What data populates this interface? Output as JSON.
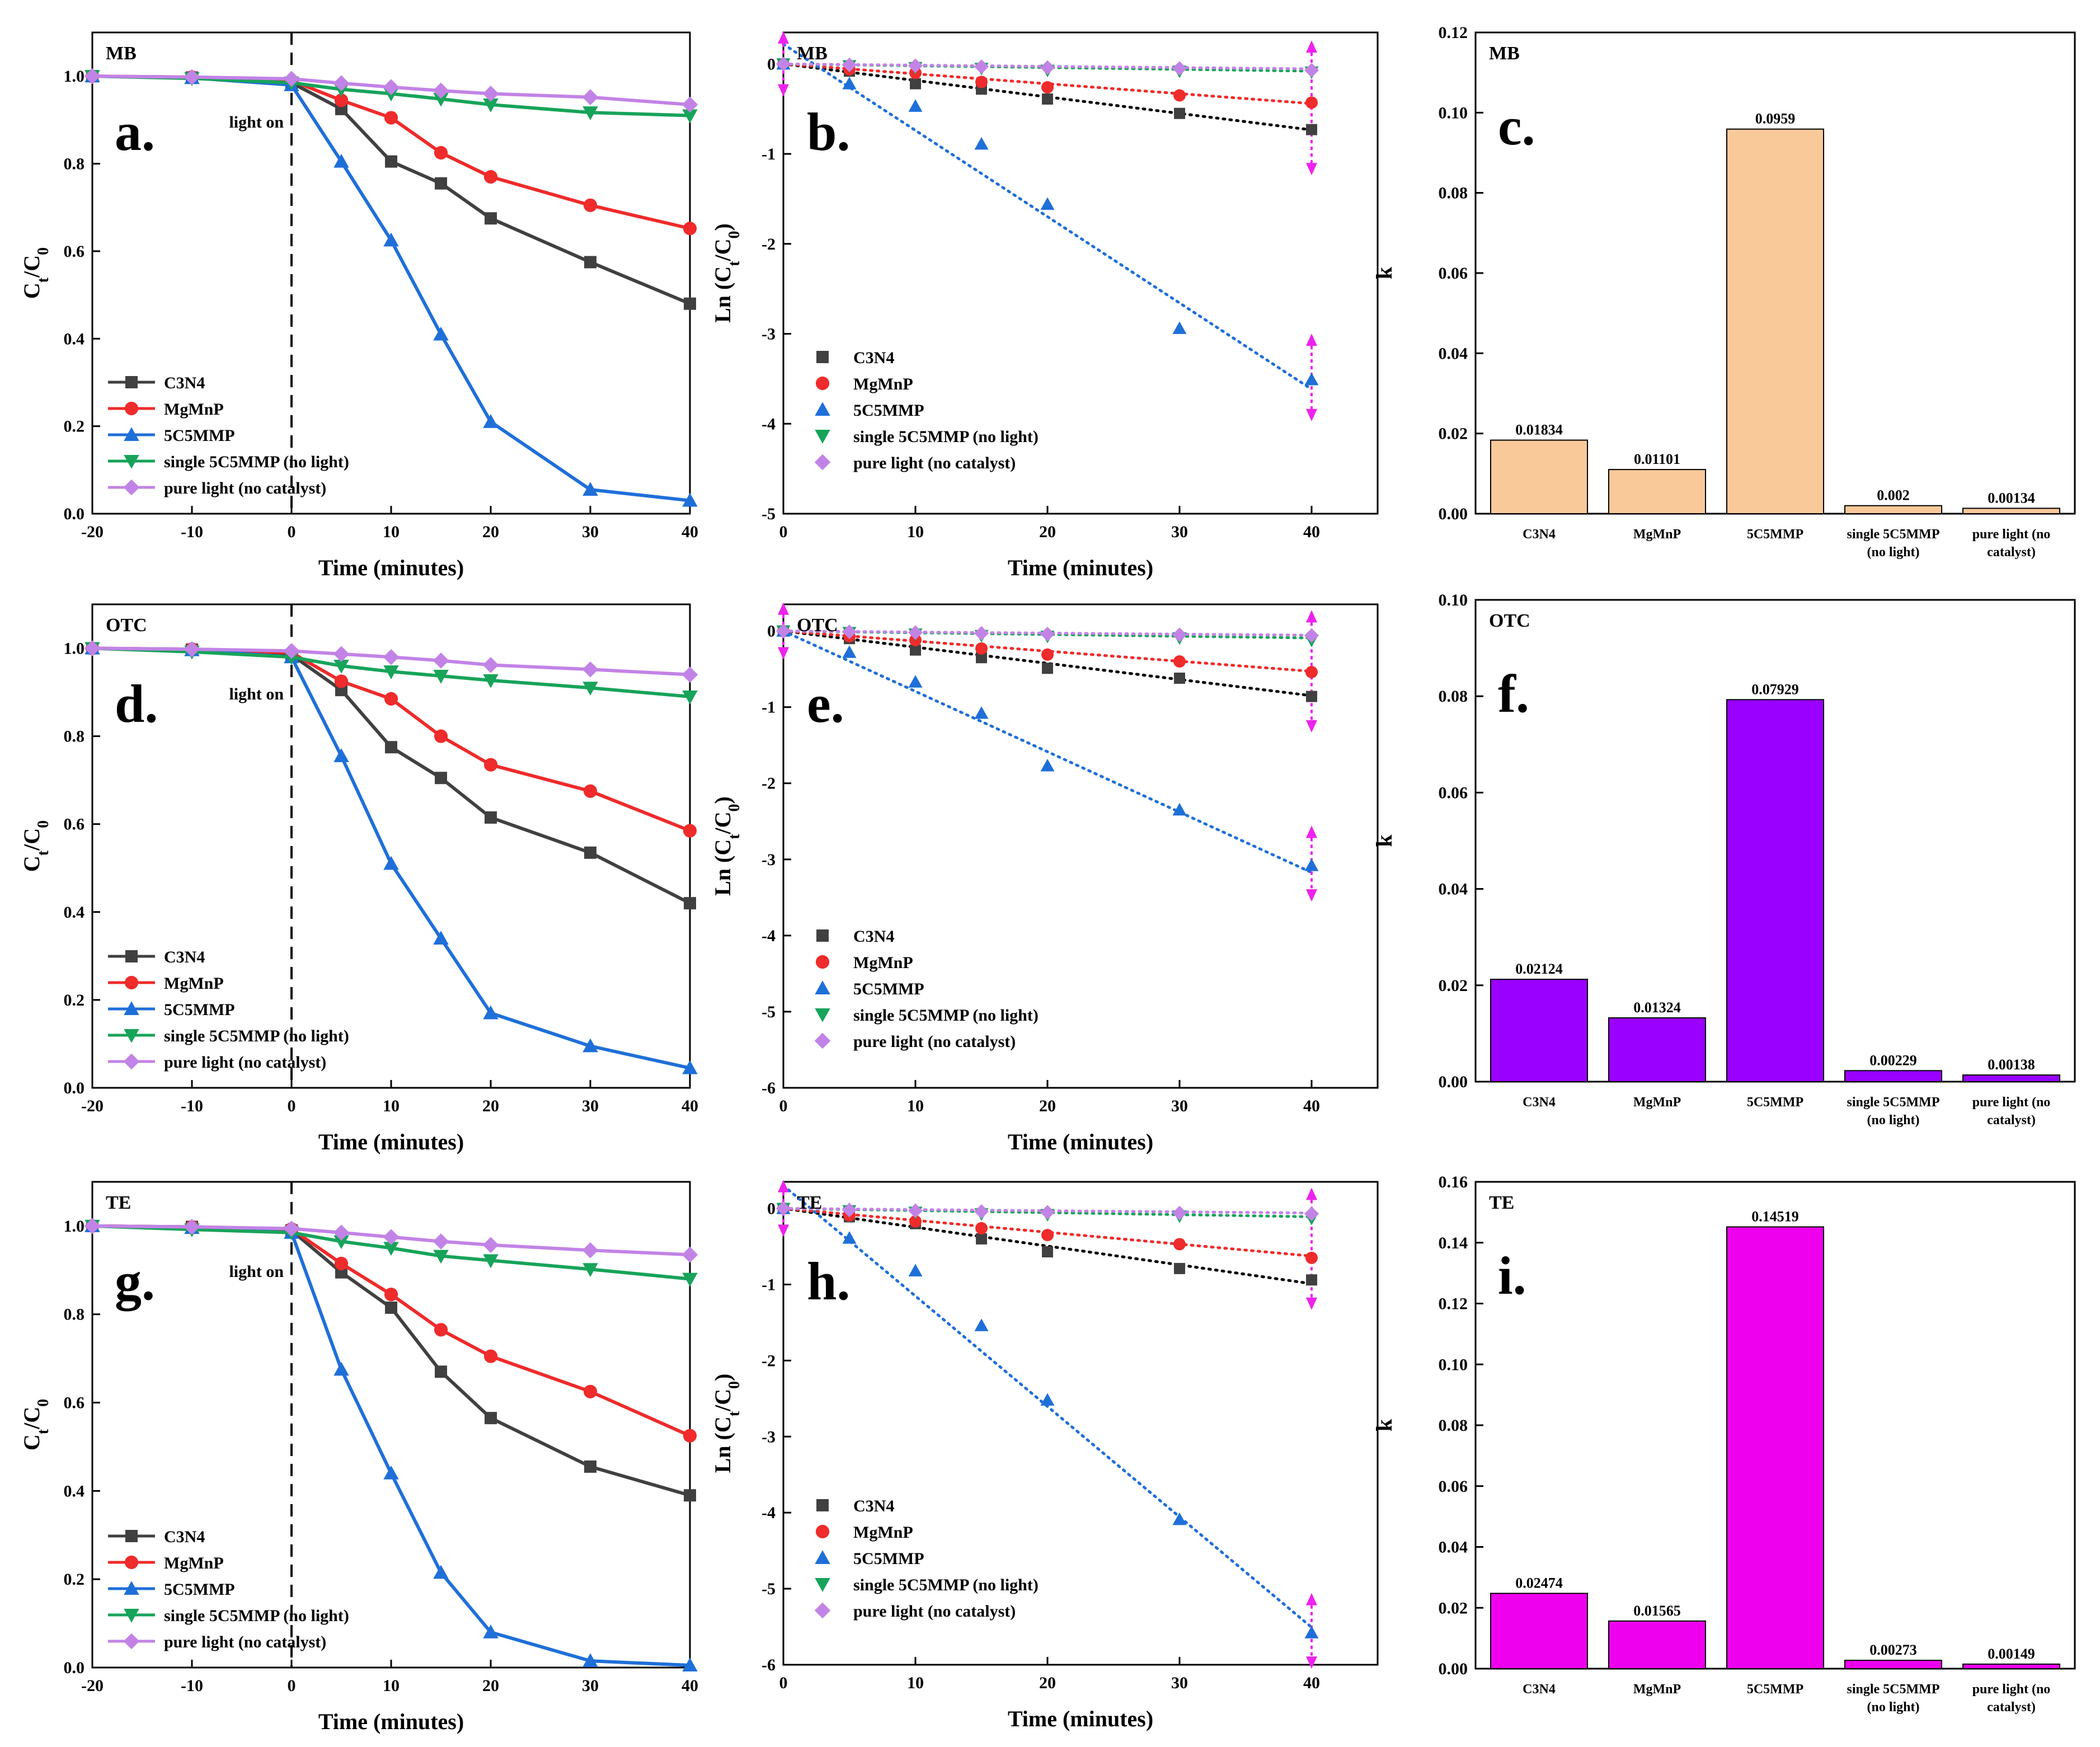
{
  "figure": {
    "series_names": [
      "C3N4",
      "MgMnP",
      "5C5MMP",
      "single 5C5MMP (no light)",
      "pure light (no catalyst)"
    ],
    "series_colors": [
      "#404040",
      "#ef2b2b",
      "#1f6fd9",
      "#17a35a",
      "#c283e6"
    ],
    "scatter_colors": [
      "#404040",
      "#ef2b2b",
      "#1f6fd9",
      "#17a35a",
      "#c283e6"
    ],
    "fit_colors": [
      "#000000",
      "#ef2b2b",
      "#1f6fd9",
      "#17a35a",
      "#c283e6"
    ],
    "magenta": "#ee22ee",
    "markers": [
      "square",
      "circle",
      "triangle-up",
      "triangle-down",
      "diamond"
    ],
    "light_on_label": "light on",
    "bar_categories": [
      "C3N4",
      "MgMnP",
      "5C5MMP",
      "single 5C5MMP|(no light)",
      "pure light (no|catalyst)"
    ]
  },
  "chart_data": [
    {
      "id": "a",
      "type": "line",
      "panel_letter": "a.",
      "dataset": "MB",
      "xlabel": "Time (minutes)",
      "ylabel": "Ct/C0",
      "xlim": [
        -20,
        40
      ],
      "ylim": [
        0,
        1.1
      ],
      "xticks": [
        -20,
        -10,
        0,
        10,
        20,
        30,
        40
      ],
      "yticks": [
        "0.0",
        "0.2",
        "0.4",
        "0.6",
        "0.8",
        "1.0"
      ],
      "legend_position": "bottom-left",
      "x": [
        -20,
        -10,
        0,
        5,
        10,
        15,
        20,
        30,
        40
      ],
      "series": [
        {
          "name": "C3N4",
          "values": [
            1.0,
            0.997,
            0.985,
            0.925,
            0.805,
            0.755,
            0.675,
            0.575,
            0.48
          ]
        },
        {
          "name": "MgMnP",
          "values": [
            1.0,
            0.998,
            0.99,
            0.945,
            0.905,
            0.825,
            0.77,
            0.705,
            0.652
          ]
        },
        {
          "name": "5C5MMP",
          "values": [
            1.0,
            0.996,
            0.98,
            0.805,
            0.625,
            0.41,
            0.21,
            0.055,
            0.03
          ]
        },
        {
          "name": "single 5C5MMP (no light)",
          "values": [
            1.0,
            0.995,
            0.985,
            0.97,
            0.96,
            0.948,
            0.935,
            0.917,
            0.91
          ]
        },
        {
          "name": "pure light (no catalyst)",
          "values": [
            1.0,
            0.998,
            0.994,
            0.984,
            0.975,
            0.967,
            0.96,
            0.952,
            0.935
          ]
        }
      ]
    },
    {
      "id": "b",
      "type": "scatter",
      "panel_letter": "b.",
      "dataset": "MB",
      "xlabel": "Time (minutes)",
      "ylabel": "Ln (Ct/C0)",
      "xlim": [
        0,
        45
      ],
      "ylim": [
        -5,
        0.35
      ],
      "xticks": [
        0,
        10,
        20,
        30,
        40
      ],
      "yticks": [
        "0",
        "-1",
        "-2",
        "-3",
        "-4",
        "-5"
      ],
      "legend_position": "bottom-left",
      "x": [
        0,
        5,
        10,
        15,
        20,
        30,
        40
      ],
      "series": [
        {
          "name": "C3N4",
          "values": [
            0,
            -0.08,
            -0.22,
            -0.28,
            -0.39,
            -0.55,
            -0.73
          ]
        },
        {
          "name": "MgMnP",
          "values": [
            0,
            -0.06,
            -0.1,
            -0.2,
            -0.26,
            -0.35,
            -0.43
          ]
        },
        {
          "name": "5C5MMP",
          "values": [
            0,
            -0.22,
            -0.47,
            -0.89,
            -1.56,
            -2.94,
            -3.51
          ]
        },
        {
          "name": "single 5C5MMP (no light)",
          "values": [
            0,
            -0.02,
            -0.04,
            -0.05,
            -0.07,
            -0.08,
            -0.09
          ]
        },
        {
          "name": "pure light (no catalyst)",
          "values": [
            0,
            -0.01,
            -0.02,
            -0.03,
            -0.04,
            -0.05,
            -0.07
          ]
        }
      ],
      "fit_slopes": [
        -0.01834,
        -0.01101,
        -0.0959,
        -0.002,
        -0.00134
      ],
      "fit_intercepts": [
        0,
        0,
        0.22,
        0,
        0
      ]
    },
    {
      "id": "c",
      "type": "bar",
      "panel_letter": "c.",
      "dataset": "MB",
      "xlabel": "",
      "ylabel": "k",
      "ylim": [
        0,
        0.12
      ],
      "yticks": [
        "0.00",
        "0.02",
        "0.04",
        "0.06",
        "0.08",
        "0.10",
        "0.12"
      ],
      "values": [
        0.01834,
        0.01101,
        0.0959,
        0.002,
        0.00134
      ],
      "value_labels": [
        "0.01834",
        "0.01101",
        "0.0959",
        "0.002",
        "0.00134"
      ],
      "bar_color": "#f9c99a"
    },
    {
      "id": "d",
      "type": "line",
      "panel_letter": "d.",
      "dataset": "OTC",
      "xlabel": "Time (minutes)",
      "ylabel": "Ct/C0",
      "xlim": [
        -20,
        40
      ],
      "ylim": [
        0,
        1.1
      ],
      "xticks": [
        -20,
        -10,
        0,
        10,
        20,
        30,
        40
      ],
      "yticks": [
        "0.0",
        "0.2",
        "0.4",
        "0.6",
        "0.8",
        "1.0"
      ],
      "legend_position": "bottom-left",
      "x": [
        -20,
        -10,
        0,
        5,
        10,
        15,
        20,
        30,
        40
      ],
      "series": [
        {
          "name": "C3N4",
          "values": [
            1.0,
            0.997,
            0.985,
            0.905,
            0.775,
            0.705,
            0.615,
            0.535,
            0.42
          ]
        },
        {
          "name": "MgMnP",
          "values": [
            1.0,
            0.998,
            0.99,
            0.925,
            0.885,
            0.8,
            0.735,
            0.675,
            0.585
          ]
        },
        {
          "name": "5C5MMP",
          "values": [
            1.0,
            0.996,
            0.98,
            0.755,
            0.51,
            0.34,
            0.17,
            0.095,
            0.045
          ]
        },
        {
          "name": "single 5C5MMP (no light)",
          "values": [
            1.0,
            0.992,
            0.98,
            0.96,
            0.947,
            0.937,
            0.927,
            0.91,
            0.89
          ]
        },
        {
          "name": "pure light (no catalyst)",
          "values": [
            1.0,
            0.998,
            0.994,
            0.987,
            0.98,
            0.972,
            0.962,
            0.952,
            0.94
          ]
        }
      ]
    },
    {
      "id": "e",
      "type": "scatter",
      "panel_letter": "e.",
      "dataset": "OTC",
      "xlabel": "Time (minutes)",
      "ylabel": "Ln (Ct/C0)",
      "xlim": [
        0,
        45
      ],
      "ylim": [
        -6,
        0.35
      ],
      "xticks": [
        0,
        10,
        20,
        30,
        40
      ],
      "yticks": [
        "0",
        "-1",
        "-2",
        "-3",
        "-4",
        "-5",
        "-6"
      ],
      "legend_position": "bottom-left",
      "x": [
        0,
        5,
        10,
        15,
        20,
        30,
        40
      ],
      "series": [
        {
          "name": "C3N4",
          "values": [
            0,
            -0.1,
            -0.25,
            -0.35,
            -0.49,
            -0.62,
            -0.86
          ]
        },
        {
          "name": "MgMnP",
          "values": [
            0,
            -0.07,
            -0.12,
            -0.23,
            -0.31,
            -0.4,
            -0.54
          ]
        },
        {
          "name": "5C5MMP",
          "values": [
            0,
            -0.28,
            -0.67,
            -1.08,
            -1.77,
            -2.35,
            -3.08
          ]
        },
        {
          "name": "single 5C5MMP (no light)",
          "values": [
            0,
            -0.02,
            -0.04,
            -0.06,
            -0.07,
            -0.09,
            -0.12
          ]
        },
        {
          "name": "pure light (no catalyst)",
          "values": [
            0,
            -0.01,
            -0.02,
            -0.03,
            -0.04,
            -0.05,
            -0.06
          ]
        }
      ],
      "fit_slopes": [
        -0.02124,
        -0.01324,
        -0.07929,
        -0.00229,
        -0.00138
      ],
      "fit_intercepts": [
        0,
        0,
        0,
        0,
        0
      ]
    },
    {
      "id": "f",
      "type": "bar",
      "panel_letter": "f.",
      "dataset": "OTC",
      "xlabel": "",
      "ylabel": "k",
      "ylim": [
        0,
        0.1
      ],
      "yticks": [
        "0.00",
        "0.02",
        "0.04",
        "0.06",
        "0.08",
        "0.10"
      ],
      "values": [
        0.02124,
        0.01324,
        0.07929,
        0.00229,
        0.00138
      ],
      "value_labels": [
        "0.02124",
        "0.01324",
        "0.07929",
        "0.00229",
        "0.00138"
      ],
      "bar_color": "#9900ff"
    },
    {
      "id": "g",
      "type": "line",
      "panel_letter": "g.",
      "dataset": "TE",
      "xlabel": "Time (minutes)",
      "ylabel": "Ct/C0",
      "xlim": [
        -20,
        40
      ],
      "ylim": [
        0,
        1.1
      ],
      "xticks": [
        -20,
        -10,
        0,
        10,
        20,
        30,
        40
      ],
      "yticks": [
        "0.0",
        "0.2",
        "0.4",
        "0.6",
        "0.8",
        "1.0"
      ],
      "legend_position": "bottom-left",
      "x": [
        -20,
        -10,
        0,
        5,
        10,
        15,
        20,
        30,
        40
      ],
      "series": [
        {
          "name": "C3N4",
          "values": [
            1.0,
            0.998,
            0.99,
            0.895,
            0.815,
            0.67,
            0.565,
            0.455,
            0.39
          ]
        },
        {
          "name": "MgMnP",
          "values": [
            1.0,
            0.998,
            0.993,
            0.915,
            0.845,
            0.765,
            0.705,
            0.625,
            0.525
          ]
        },
        {
          "name": "5C5MMP",
          "values": [
            1.0,
            0.996,
            0.985,
            0.675,
            0.44,
            0.215,
            0.08,
            0.015,
            0.005
          ]
        },
        {
          "name": "single 5C5MMP (no light)",
          "values": [
            1.0,
            0.992,
            0.985,
            0.965,
            0.95,
            0.932,
            0.922,
            0.902,
            0.88
          ]
        },
        {
          "name": "pure light (no catalyst)",
          "values": [
            1.0,
            0.998,
            0.994,
            0.985,
            0.975,
            0.965,
            0.957,
            0.945,
            0.935
          ]
        }
      ]
    },
    {
      "id": "h",
      "type": "scatter",
      "panel_letter": "h.",
      "dataset": "TE",
      "xlabel": "Time (minutes)",
      "ylabel": "Ln (Ct/C0)",
      "xlim": [
        0,
        45
      ],
      "ylim": [
        -6,
        0.35
      ],
      "xticks": [
        0,
        10,
        20,
        30,
        40
      ],
      "yticks": [
        "0",
        "-1",
        "-2",
        "-3",
        "-4",
        "-5",
        "-6"
      ],
      "legend_position": "bottom-left",
      "x": [
        0,
        5,
        10,
        15,
        20,
        30,
        40
      ],
      "series": [
        {
          "name": "C3N4",
          "values": [
            0,
            -0.11,
            -0.2,
            -0.4,
            -0.57,
            -0.79,
            -0.94
          ]
        },
        {
          "name": "MgMnP",
          "values": [
            0,
            -0.09,
            -0.17,
            -0.26,
            -0.35,
            -0.47,
            -0.65
          ]
        },
        {
          "name": "5C5MMP",
          "values": [
            0,
            -0.39,
            -0.82,
            -1.54,
            -2.52,
            -4.09,
            -5.58
          ]
        },
        {
          "name": "single 5C5MMP (no light)",
          "values": [
            0,
            -0.03,
            -0.05,
            -0.07,
            -0.08,
            -0.1,
            -0.13
          ]
        },
        {
          "name": "pure light (no catalyst)",
          "values": [
            0,
            -0.02,
            -0.03,
            -0.04,
            -0.05,
            -0.06,
            -0.07
          ]
        }
      ],
      "fit_slopes": [
        -0.02474,
        -0.01565,
        -0.14519,
        -0.00273,
        -0.00149
      ],
      "fit_intercepts": [
        0,
        0,
        0.3,
        0,
        0
      ]
    },
    {
      "id": "i",
      "type": "bar",
      "panel_letter": "i.",
      "dataset": "TE",
      "xlabel": "",
      "ylabel": "k",
      "ylim": [
        0,
        0.16
      ],
      "yticks": [
        "0.00",
        "0.02",
        "0.04",
        "0.06",
        "0.08",
        "0.10",
        "0.12",
        "0.14",
        "0.16"
      ],
      "values": [
        0.02474,
        0.01565,
        0.14519,
        0.00273,
        0.00149
      ],
      "value_labels": [
        "0.02474",
        "0.01565",
        "0.14519",
        "0.00273",
        "0.00149"
      ],
      "bar_color": "#ee00ee"
    }
  ]
}
